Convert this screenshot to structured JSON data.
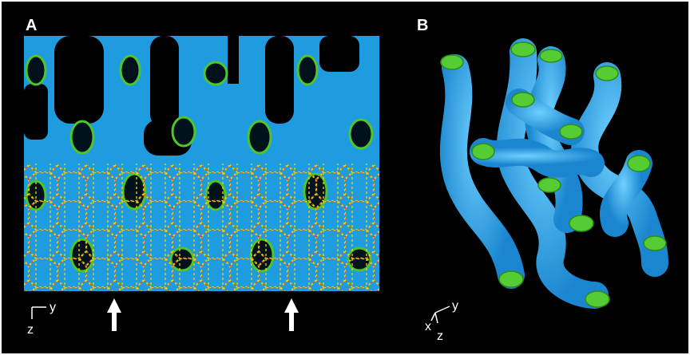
{
  "panels": [
    {
      "label": "A",
      "axes": {
        "horizontal": "y",
        "vertical": "z"
      }
    },
    {
      "label": "B",
      "axes": {
        "horizontal": "y",
        "depth": "x",
        "vertical": "z"
      }
    }
  ]
}
